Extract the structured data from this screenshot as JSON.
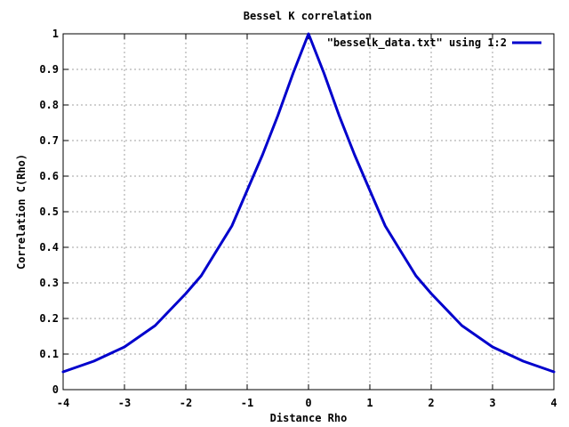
{
  "chart_data": {
    "type": "line",
    "title": "Bessel K correlation",
    "xlabel": "Distance Rho",
    "ylabel": "Correlation C(Rho)",
    "xlim": [
      -4,
      4
    ],
    "ylim": [
      0,
      1
    ],
    "x_ticks": [
      -4,
      -3,
      -2,
      -1,
      0,
      1,
      2,
      3,
      4
    ],
    "y_ticks": [
      0,
      0.1,
      0.2,
      0.3,
      0.4,
      0.5,
      0.6,
      0.7,
      0.8,
      0.9,
      1
    ],
    "x_tick_labels": [
      "-4",
      "-3",
      "-2",
      "-1",
      "0",
      "1",
      "2",
      "3",
      "4"
    ],
    "y_tick_labels": [
      "0",
      "0.1",
      "0.2",
      "0.3",
      "0.4",
      "0.5",
      "0.6",
      "0.7",
      "0.8",
      "0.9",
      "1"
    ],
    "grid": true,
    "legend_position": "top-right",
    "series": [
      {
        "name": "\"besselk_data.txt\" using 1:2",
        "color": "#0000cc",
        "x": [
          -4,
          -3.5,
          -3,
          -2.5,
          -2,
          -1.75,
          -1.5,
          -1.25,
          -1,
          -0.75,
          -0.5,
          -0.25,
          0,
          0.25,
          0.5,
          0.75,
          1,
          1.25,
          1.5,
          1.75,
          2,
          2.5,
          3,
          3.5,
          4
        ],
        "y": [
          0.05,
          0.08,
          0.12,
          0.18,
          0.27,
          0.32,
          0.39,
          0.46,
          0.56,
          0.66,
          0.77,
          0.89,
          1.0,
          0.89,
          0.77,
          0.66,
          0.56,
          0.46,
          0.39,
          0.32,
          0.27,
          0.18,
          0.12,
          0.08,
          0.05
        ]
      }
    ]
  }
}
